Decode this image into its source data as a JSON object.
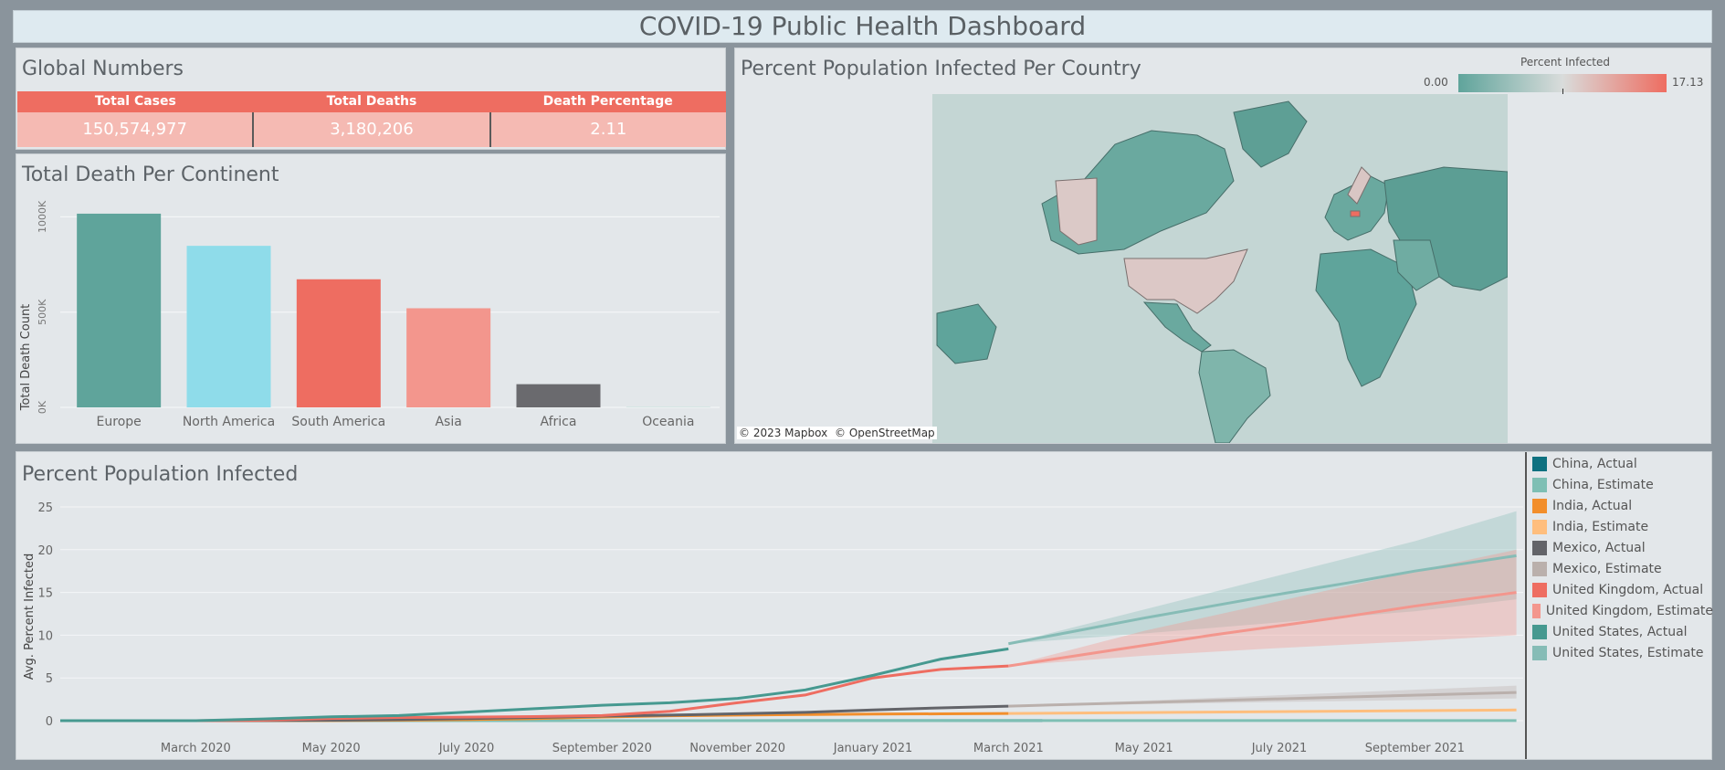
{
  "dashboard": {
    "title": "COVID-19 Public Health Dashboard"
  },
  "global_numbers": {
    "title": "Global Numbers",
    "columns": [
      {
        "label": "Total Cases",
        "value": "150,574,977"
      },
      {
        "label": "Total Deaths",
        "value": "3,180,206"
      },
      {
        "label": "Death Percentage",
        "value": "2.11"
      }
    ]
  },
  "continent_chart": {
    "title": "Total Death Per Continent",
    "ylabel": "Total Death Count"
  },
  "map": {
    "title": "Percent Population Infected Per Country",
    "legend_title": "Percent Infected",
    "legend_min": "0.00",
    "legend_max": "17.13",
    "attribution_mapbox": "© 2023 Mapbox",
    "attribution_osm": "© OpenStreetMap",
    "colors": {
      "low": "#5fa49b",
      "mid": "#d9dcdb",
      "high": "#ee6d61"
    }
  },
  "infected_chart": {
    "title": "Percent Population Infected"
  },
  "chart_data": [
    {
      "type": "bar",
      "title": "Total Death Per Continent",
      "ylabel": "Total Death Count",
      "xlabel": "",
      "categories": [
        "Europe",
        "North America",
        "South America",
        "Asia",
        "Africa",
        "Oceania"
      ],
      "values": [
        1016750,
        847942,
        672415,
        520269,
        121784,
        1046
      ],
      "colors": [
        "#5fa49b",
        "#8fdcea",
        "#ee6d61",
        "#f3968d",
        "#6a6a6e",
        "#8fc9bd"
      ],
      "ylim": [
        0,
        1050000
      ],
      "yticks": [
        0,
        500000,
        1000000
      ],
      "ytick_labels": [
        "0K",
        "500K",
        "1000K"
      ],
      "grid": true
    },
    {
      "type": "line",
      "title": "Percent Population Infected",
      "ylabel": "Avg. Percent Infected",
      "xlabel": "",
      "ylim": [
        0,
        25
      ],
      "yticks": [
        0,
        5,
        10,
        15,
        20,
        25
      ],
      "x_start": "2020-01",
      "x_end": "2021-10",
      "xtick_months": [
        2,
        4,
        6,
        8,
        10,
        12,
        14,
        16,
        18,
        20
      ],
      "xtick_labels": [
        "March 2020",
        "May 2020",
        "July 2020",
        "September 2020",
        "November 2020",
        "January 2021",
        "March 2021",
        "May 2021",
        "July 2021",
        "September 2021"
      ],
      "series": [
        {
          "name": "China, Actual",
          "color": "#0e7180",
          "x": [
            0,
            14.5
          ],
          "values": [
            0.0,
            0.01
          ]
        },
        {
          "name": "China, Estimate",
          "color": "#7ebfb4",
          "x": [
            0,
            21.5
          ],
          "values": [
            0.0,
            0.01
          ]
        },
        {
          "name": "India, Actual",
          "color": "#f28e2b",
          "x": [
            0,
            1,
            2,
            3,
            4,
            5,
            6,
            7,
            8,
            9,
            10,
            11,
            12,
            13,
            14
          ],
          "values": [
            0,
            0,
            0,
            0.01,
            0.02,
            0.05,
            0.12,
            0.24,
            0.43,
            0.57,
            0.65,
            0.72,
            0.77,
            0.8,
            0.84
          ]
        },
        {
          "name": "India, Estimate",
          "color": "#ffbe7d",
          "x": [
            14,
            21.5
          ],
          "values": [
            0.84,
            1.25
          ]
        },
        {
          "name": "Mexico, Actual",
          "color": "#636469",
          "x": [
            0,
            1,
            2,
            3,
            4,
            5,
            6,
            7,
            8,
            9,
            10,
            11,
            12,
            13,
            14
          ],
          "values": [
            0,
            0,
            0,
            0.02,
            0.05,
            0.12,
            0.24,
            0.38,
            0.53,
            0.65,
            0.81,
            0.97,
            1.25,
            1.5,
            1.7
          ]
        },
        {
          "name": "Mexico, Estimate",
          "color": "#bab0ac",
          "x": [
            14,
            21.5
          ],
          "values": [
            1.7,
            3.3
          ]
        },
        {
          "name": "United Kingdom, Actual",
          "color": "#ee6d61",
          "x": [
            0,
            1,
            2,
            3,
            4,
            5,
            6,
            7,
            8,
            9,
            10,
            11,
            12,
            13,
            14
          ],
          "values": [
            0,
            0,
            0,
            0.05,
            0.25,
            0.37,
            0.42,
            0.48,
            0.6,
            1.1,
            2.1,
            3.0,
            5.0,
            6.0,
            6.4
          ]
        },
        {
          "name": "United Kingdom, Estimate",
          "color": "#f3968d",
          "x": [
            14,
            15,
            16,
            17,
            18,
            19,
            20,
            21.5
          ],
          "values": [
            6.4,
            7.6,
            8.8,
            10.0,
            11.1,
            12.2,
            13.4,
            15.0
          ]
        },
        {
          "name": "United States, Actual",
          "color": "#469990",
          "x": [
            0,
            1,
            2,
            3,
            4,
            5,
            6,
            7,
            8,
            9,
            10,
            11,
            12,
            13,
            14
          ],
          "values": [
            0,
            0,
            0,
            0.2,
            0.45,
            0.6,
            1.0,
            1.4,
            1.8,
            2.1,
            2.6,
            3.6,
            5.3,
            7.2,
            8.4
          ]
        },
        {
          "name": "United States, Estimate",
          "color": "#86bcb6",
          "x": [
            14,
            15,
            16,
            17,
            18,
            19,
            20,
            21.5
          ],
          "values": [
            9.0,
            10.5,
            12.0,
            13.4,
            14.8,
            16.1,
            17.5,
            19.3
          ]
        }
      ],
      "bands": [
        {
          "series": "United States, Estimate",
          "color": "#86bcb6",
          "x": [
            14,
            16,
            18,
            20,
            21.5
          ],
          "low": [
            9.0,
            10.2,
            11.5,
            12.8,
            14.2
          ],
          "high": [
            9.0,
            13.0,
            17.0,
            21.0,
            24.5
          ]
        },
        {
          "series": "United Kingdom, Estimate",
          "color": "#f3968d",
          "x": [
            14,
            16,
            18,
            20,
            21.5
          ],
          "low": [
            6.4,
            7.6,
            8.5,
            9.3,
            10.0
          ],
          "high": [
            6.4,
            10.5,
            14.0,
            17.5,
            20.0
          ]
        },
        {
          "series": "Mexico, Estimate",
          "color": "#bab0ac",
          "x": [
            14,
            21.5
          ],
          "low": [
            1.7,
            2.6
          ],
          "high": [
            1.7,
            4.1
          ]
        }
      ]
    }
  ]
}
